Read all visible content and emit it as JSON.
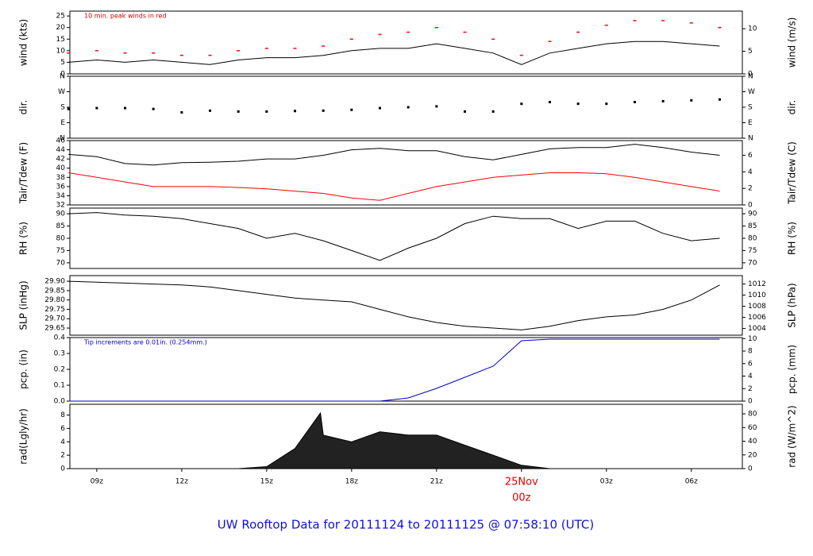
{
  "title": "UW Rooftop Data for 20111124  to  20111125 @ 07:58:10  (UTC)",
  "chart_data": [
    {
      "type": "line",
      "ylabel": "wind (kts)",
      "y2label": "wind (m/s)",
      "annotation": "10 min. peak winds in red",
      "annotation_color": "#cc0000",
      "xlim": [
        8.05,
        31.8
      ],
      "ylim": [
        0,
        27.1
      ],
      "yticks": [
        0,
        5,
        10,
        15,
        20,
        25
      ],
      "y2lim": [
        0,
        13.9
      ],
      "y2ticks": [
        0,
        5,
        10
      ],
      "x": [
        8,
        9,
        10,
        11,
        12,
        13,
        14,
        15,
        16,
        17,
        18,
        19,
        20,
        21,
        22,
        23,
        24,
        25,
        26,
        27,
        28,
        29,
        30,
        31
      ],
      "series": [
        {
          "color": "#000000",
          "style": "line",
          "values": [
            5,
            6,
            5,
            6,
            5,
            4,
            6,
            7,
            7,
            8,
            10,
            11,
            11,
            13,
            11,
            9,
            4,
            9,
            11,
            13,
            14,
            14,
            13,
            12
          ]
        },
        {
          "color": "#ff0000",
          "style": "dash",
          "values": [
            9,
            10,
            9,
            9,
            8,
            8,
            10,
            11,
            11,
            12,
            15,
            17,
            18,
            20,
            18,
            15,
            8,
            14,
            18,
            21,
            23,
            23,
            22,
            20
          ]
        }
      ]
    },
    {
      "type": "scatter",
      "ylabel": "dir.",
      "y2label": "dir.",
      "xlim": [
        8.05,
        31.8
      ],
      "ylim": [
        0,
        360
      ],
      "yticks": [
        {
          "value": 0,
          "label": "N"
        },
        {
          "value": 90,
          "label": "E"
        },
        {
          "value": 180,
          "label": "S"
        },
        {
          "value": 270,
          "label": "W"
        },
        {
          "value": 360,
          "label": "N"
        }
      ],
      "y2lim": [
        0,
        360
      ],
      "y2ticks": [
        {
          "value": 0,
          "label": "N"
        },
        {
          "value": 90,
          "label": "E"
        },
        {
          "value": 180,
          "label": "S"
        },
        {
          "value": 270,
          "label": "W"
        },
        {
          "value": 360,
          "label": "N"
        }
      ],
      "x": [
        8,
        9,
        10,
        11,
        12,
        13,
        14,
        15,
        16,
        17,
        18,
        19,
        20,
        21,
        22,
        23,
        24,
        25,
        26,
        27,
        28,
        29,
        30,
        31
      ],
      "series": [
        {
          "color": "#000000",
          "style": "dot",
          "values": [
            170,
            175,
            175,
            170,
            150,
            160,
            155,
            155,
            158,
            160,
            165,
            175,
            180,
            185,
            155,
            155,
            200,
            210,
            200,
            200,
            210,
            215,
            220,
            225
          ]
        }
      ]
    },
    {
      "type": "line",
      "ylabel": "Tair/Tdew (F)",
      "y2label": "Tair/Tdew (C)",
      "xlim": [
        8.05,
        31.8
      ],
      "ylim": [
        32,
        46
      ],
      "yticks": [
        32,
        34,
        36,
        38,
        40,
        42,
        44,
        46
      ],
      "y2lim": [
        0,
        7.78
      ],
      "y2ticks": [
        0,
        2,
        4,
        6
      ],
      "x": [
        8,
        9,
        10,
        11,
        12,
        13,
        14,
        15,
        16,
        17,
        18,
        19,
        20,
        21,
        22,
        23,
        24,
        25,
        26,
        27,
        28,
        29,
        30,
        31
      ],
      "series": [
        {
          "color": "#000000",
          "style": "line",
          "values": [
            43,
            42.5,
            41,
            40.7,
            41.2,
            41.3,
            41.5,
            42,
            42,
            42.8,
            44,
            44.3,
            43.8,
            43.8,
            42.5,
            41.8,
            43,
            44.2,
            44.5,
            44.5,
            45.2,
            44.5,
            43.5,
            42.8
          ]
        },
        {
          "color": "#ff0000",
          "style": "line",
          "values": [
            39,
            38,
            37,
            36,
            36,
            36,
            35.8,
            35.5,
            35,
            34.5,
            33.5,
            33,
            34.5,
            36,
            37,
            38,
            38.5,
            39,
            39,
            38.8,
            38,
            37,
            36,
            35
          ]
        }
      ]
    },
    {
      "type": "line",
      "ylabel": "RH (%)",
      "y2label": "RH (%)",
      "xlim": [
        8.05,
        31.8
      ],
      "ylim": [
        67.7,
        92.3
      ],
      "yticks": [
        70,
        75,
        80,
        85,
        90
      ],
      "y2lim": [
        67.7,
        92.3
      ],
      "y2ticks": [
        70,
        75,
        80,
        85,
        90
      ],
      "x": [
        8,
        9,
        10,
        11,
        12,
        13,
        14,
        15,
        16,
        17,
        18,
        19,
        20,
        21,
        22,
        23,
        24,
        25,
        26,
        27,
        28,
        29,
        30,
        31
      ],
      "series": [
        {
          "color": "#000000",
          "style": "line",
          "values": [
            90,
            90.5,
            89.5,
            89,
            88,
            86,
            84,
            80,
            82,
            79,
            75,
            71,
            76,
            80,
            86,
            89,
            88,
            88,
            84,
            87,
            87,
            82,
            79,
            80
          ]
        }
      ]
    },
    {
      "type": "line",
      "ylabel": "SLP (inHg)",
      "y2label": "SLP (hPa)",
      "xlim": [
        8.05,
        31.8
      ],
      "ylim": [
        29.612,
        29.93
      ],
      "yticks": [
        {
          "value": 29.65,
          "label": "29.65"
        },
        {
          "value": 29.7,
          "label": "29.70"
        },
        {
          "value": 29.75,
          "label": "29.75"
        },
        {
          "value": 29.8,
          "label": "29.80"
        },
        {
          "value": 29.85,
          "label": "29.85"
        },
        {
          "value": 29.9,
          "label": "29.90"
        }
      ],
      "y2lim": [
        1002.8,
        1013.5
      ],
      "y2ticks": [
        1004,
        1006,
        1008,
        1010,
        1012
      ],
      "x": [
        8,
        9,
        10,
        11,
        12,
        13,
        14,
        15,
        16,
        17,
        18,
        19,
        20,
        21,
        22,
        23,
        24,
        25,
        26,
        27,
        28,
        29,
        30,
        31
      ],
      "series": [
        {
          "color": "#000000",
          "style": "line",
          "values": [
            29.9,
            29.895,
            29.89,
            29.885,
            29.88,
            29.87,
            29.85,
            29.83,
            29.81,
            29.8,
            29.79,
            29.75,
            29.71,
            29.68,
            29.66,
            29.65,
            29.64,
            29.66,
            29.69,
            29.71,
            29.72,
            29.75,
            29.8,
            29.88
          ]
        }
      ]
    },
    {
      "type": "line",
      "ylabel": "pcp. (in)",
      "y2label": "pcp. (mm)",
      "annotation": "Tip increments are 0.01in. (0.254mm.)",
      "annotation_color": "#0000cc",
      "xlim": [
        8.05,
        31.8
      ],
      "ylim": [
        0,
        0.4
      ],
      "yticks": [
        {
          "value": 0,
          "label": "0.0"
        },
        0.1,
        0.2,
        0.3,
        0.4
      ],
      "y2lim": [
        0,
        10.16
      ],
      "y2ticks": [
        0,
        2,
        4,
        6,
        8,
        10
      ],
      "x": [
        8,
        9,
        10,
        11,
        12,
        13,
        14,
        15,
        16,
        17,
        18,
        19,
        20,
        21,
        22,
        23,
        24,
        25,
        26,
        27,
        28,
        29,
        30,
        31
      ],
      "series": [
        {
          "color": "#0000cc",
          "style": "line",
          "values": [
            0,
            0,
            0,
            0,
            0,
            0,
            0,
            0,
            0,
            0,
            0,
            0,
            0.02,
            0.08,
            0.15,
            0.22,
            0.38,
            0.39,
            0.39,
            0.39,
            0.39,
            0.39,
            0.39,
            0.39
          ]
        }
      ]
    },
    {
      "type": "area",
      "ylabel": "rad(Lgly/hr)",
      "y2label": "rad (W/m^2)",
      "xlim": [
        8.05,
        31.8
      ],
      "ylim": [
        0,
        9.6
      ],
      "yticks": [
        0,
        2,
        4,
        6,
        8
      ],
      "y2lim": [
        0,
        94
      ],
      "y2ticks": [
        0,
        20,
        40,
        60,
        80
      ],
      "xticks": [
        {
          "value": 9,
          "label": "09z"
        },
        {
          "value": 12,
          "label": "12z"
        },
        {
          "value": 15,
          "label": "15z"
        },
        {
          "value": 18,
          "label": "18z"
        },
        {
          "value": 21,
          "label": "21z"
        },
        {
          "value": 24,
          "label": "00z",
          "date": "25Nov"
        },
        {
          "value": 27,
          "label": "03z"
        },
        {
          "value": 30,
          "label": "06z"
        }
      ],
      "x": [
        8,
        9,
        10,
        11,
        12,
        13,
        14,
        15,
        16,
        16.9,
        17,
        18,
        19,
        20,
        21,
        22,
        23,
        24,
        25,
        26,
        27,
        28,
        29,
        30,
        31
      ],
      "series": [
        {
          "color": "#222222",
          "style": "area",
          "values": [
            0,
            0,
            0,
            0,
            0,
            0,
            0,
            0.3,
            3,
            8.3,
            5,
            4,
            5.5,
            5,
            5,
            3.5,
            2,
            0.5,
            0,
            0,
            0,
            0,
            0,
            0,
            0
          ]
        }
      ]
    }
  ]
}
